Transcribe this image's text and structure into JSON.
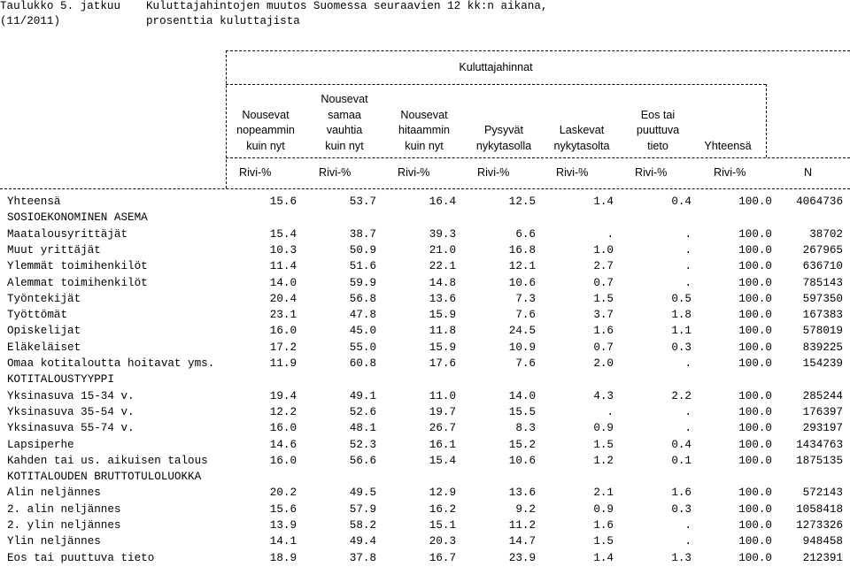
{
  "title": {
    "table_no": "Taulukko 5. jatkuu",
    "period": "(11/2011)",
    "line1": "Kuluttajahintojen muutos Suomessa seuraavien 12 kk:n aikana,",
    "line2": "prosenttia kuluttajista"
  },
  "group_header": "Kuluttajahinnat",
  "columns": [
    {
      "lines": [
        "",
        "Nousevat",
        "nopeammin",
        "kuin nyt"
      ]
    },
    {
      "lines": [
        "Nousevat",
        "samaa",
        "vauhtia",
        "kuin nyt"
      ]
    },
    {
      "lines": [
        "",
        "Nousevat",
        "hitaammin",
        "kuin nyt"
      ]
    },
    {
      "lines": [
        "",
        "",
        "Pysyvät",
        "nykytasolla"
      ]
    },
    {
      "lines": [
        "",
        "",
        "Laskevat",
        "nykytasolta"
      ]
    },
    {
      "lines": [
        "",
        "Eos tai",
        "puuttuva",
        "tieto"
      ]
    },
    {
      "lines": [
        "",
        "",
        "",
        "Yhteensä"
      ]
    }
  ],
  "units": [
    "Rivi-%",
    "Rivi-%",
    "Rivi-%",
    "Rivi-%",
    "Rivi-%",
    "Rivi-%",
    "Rivi-%",
    "N"
  ],
  "rows": [
    {
      "label": "Yhteensä",
      "values": [
        "15.6",
        "53.7",
        "16.4",
        "12.5",
        "1.4",
        "0.4",
        "100.0",
        "4064736"
      ]
    },
    {
      "label": "SOSIOEKONOMINEN ASEMA",
      "values": [
        "",
        "",
        "",
        "",
        "",
        "",
        "",
        ""
      ]
    },
    {
      "label": "Maatalousyrittäjät",
      "values": [
        "15.4",
        "38.7",
        "39.3",
        "6.6",
        ".",
        ".",
        "100.0",
        "38702"
      ]
    },
    {
      "label": "Muut yrittäjät",
      "values": [
        "10.3",
        "50.9",
        "21.0",
        "16.8",
        "1.0",
        ".",
        "100.0",
        "267965"
      ]
    },
    {
      "label": "Ylemmät toimihenkilöt",
      "values": [
        "11.4",
        "51.6",
        "22.1",
        "12.1",
        "2.7",
        ".",
        "100.0",
        "636710"
      ]
    },
    {
      "label": "Alemmat toimihenkilöt",
      "values": [
        "14.0",
        "59.9",
        "14.8",
        "10.6",
        "0.7",
        ".",
        "100.0",
        "785143"
      ]
    },
    {
      "label": "Työntekijät",
      "values": [
        "20.4",
        "56.8",
        "13.6",
        "7.3",
        "1.5",
        "0.5",
        "100.0",
        "597350"
      ]
    },
    {
      "label": "Työttömät",
      "values": [
        "23.1",
        "47.8",
        "15.9",
        "7.6",
        "3.7",
        "1.8",
        "100.0",
        "167383"
      ]
    },
    {
      "label": "Opiskelijat",
      "values": [
        "16.0",
        "45.0",
        "11.8",
        "24.5",
        "1.6",
        "1.1",
        "100.0",
        "578019"
      ]
    },
    {
      "label": "Eläkeläiset",
      "values": [
        "17.2",
        "55.0",
        "15.9",
        "10.9",
        "0.7",
        "0.3",
        "100.0",
        "839225"
      ]
    },
    {
      "label": "Omaa kotitaloutta hoitavat yms.",
      "values": [
        "11.9",
        "60.8",
        "17.6",
        "7.6",
        "2.0",
        ".",
        "100.0",
        "154239"
      ]
    },
    {
      "label": "KOTITALOUSTYYPPI",
      "values": [
        "",
        "",
        "",
        "",
        "",
        "",
        "",
        ""
      ]
    },
    {
      "label": "Yksinasuva 15-34 v.",
      "values": [
        "19.4",
        "49.1",
        "11.0",
        "14.0",
        "4.3",
        "2.2",
        "100.0",
        "285244"
      ]
    },
    {
      "label": "Yksinasuva 35-54 v.",
      "values": [
        "12.2",
        "52.6",
        "19.7",
        "15.5",
        ".",
        ".",
        "100.0",
        "176397"
      ]
    },
    {
      "label": "Yksinasuva 55-74 v.",
      "values": [
        "16.0",
        "48.1",
        "26.7",
        "8.3",
        "0.9",
        ".",
        "100.0",
        "293197"
      ]
    },
    {
      "label": "Lapsiperhe",
      "values": [
        "14.6",
        "52.3",
        "16.1",
        "15.2",
        "1.5",
        "0.4",
        "100.0",
        "1434763"
      ]
    },
    {
      "label": "Kahden tai us. aikuisen talous",
      "values": [
        "16.0",
        "56.6",
        "15.4",
        "10.6",
        "1.2",
        "0.1",
        "100.0",
        "1875135"
      ]
    },
    {
      "label": "KOTITALOUDEN BRUTTOTULOLUOKKA",
      "values": [
        "",
        "",
        "",
        "",
        "",
        "",
        "",
        ""
      ]
    },
    {
      "label": "Alin neljännes",
      "values": [
        "20.2",
        "49.5",
        "12.9",
        "13.6",
        "2.1",
        "1.6",
        "100.0",
        "572143"
      ]
    },
    {
      "label": "2. alin neljännes",
      "values": [
        "15.6",
        "57.9",
        "16.2",
        "9.2",
        "0.9",
        "0.3",
        "100.0",
        "1058418"
      ]
    },
    {
      "label": "2. ylin neljännes",
      "values": [
        "13.9",
        "58.2",
        "15.1",
        "11.2",
        "1.6",
        ".",
        "100.0",
        "1273326"
      ]
    },
    {
      "label": "Ylin neljännes",
      "values": [
        "14.1",
        "49.4",
        "20.3",
        "14.7",
        "1.5",
        ".",
        "100.0",
        "948458"
      ]
    },
    {
      "label": "Eos tai puuttuva tieto",
      "values": [
        "18.9",
        "37.8",
        "16.7",
        "23.9",
        "1.4",
        "1.3",
        "100.0",
        "212391"
      ]
    }
  ]
}
